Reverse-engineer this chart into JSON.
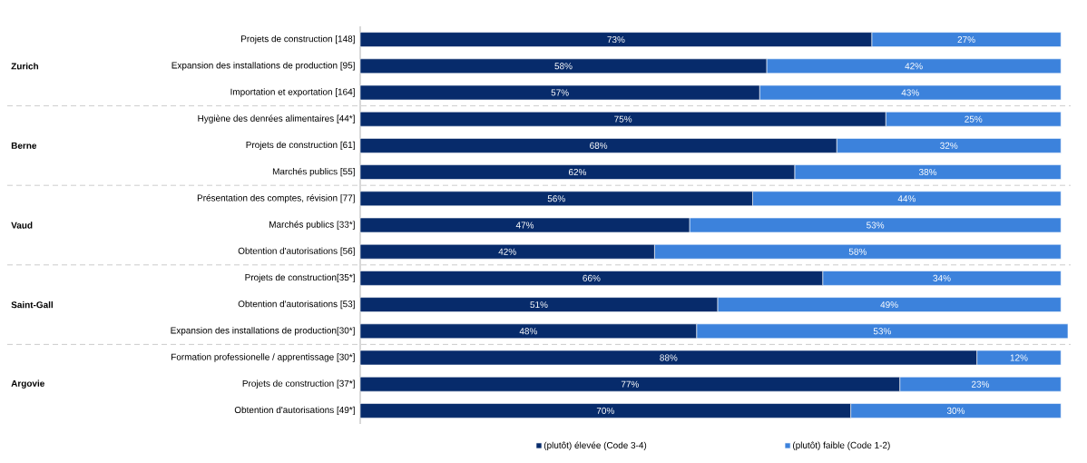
{
  "chart_data": {
    "type": "bar",
    "orientation": "horizontal",
    "stacked": true,
    "legend": "bottom",
    "categories": [
      "Projets de construction [148]",
      "Expansion des installations de production [95]",
      "Importation et exportation [164]",
      "Hygiène des denrées alimentaires [44*]",
      "Projets de construction [61]",
      "Marchés publics [55]",
      "Présentation des comptes, révision [77]",
      "Marchés publics [33*]",
      "Obtention d'autorisations [56]",
      "Projets de construction[35*]",
      "Obtention d'autorisations [53]",
      "Expansion des installations de production[30*]",
      "Formation professionelle / apprentissage [30*]",
      "Projets de construction [37*]",
      "Obtention d'autorisations [49*]"
    ],
    "series": [
      {
        "name": "(plutôt) élevée (Code 3-4)",
        "color": "#072b6b",
        "values": [
          73,
          58,
          57,
          75,
          68,
          62,
          56,
          47,
          42,
          66,
          51,
          48,
          88,
          77,
          70
        ],
        "value_labels": [
          "73%",
          "58%",
          "57%",
          "75%",
          "68%",
          "62%",
          "56%",
          "47%",
          "42%",
          "66%",
          "51%",
          "48%",
          "88%",
          "77%",
          "70%"
        ]
      },
      {
        "name": "(plutôt) faible (Code 1-2)",
        "color": "#3c82dc",
        "values": [
          27,
          42,
          43,
          25,
          32,
          38,
          44,
          53,
          58,
          34,
          49,
          53,
          12,
          23,
          30
        ],
        "value_labels": [
          "27%",
          "42%",
          "43%",
          "25%",
          "32%",
          "38%",
          "44%",
          "53%",
          "58%",
          "34%",
          "49%",
          "53%",
          "12%",
          "23%",
          "30%"
        ]
      }
    ],
    "annotations": [
      "Zurich",
      "Berne",
      "Vaud",
      "Saint-Gall",
      "Argovie"
    ]
  }
}
